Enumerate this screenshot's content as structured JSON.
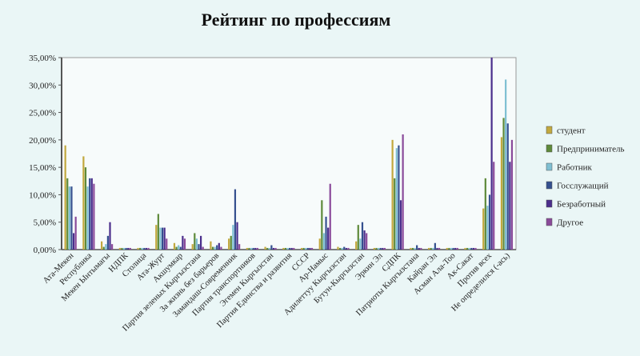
{
  "chart_data": {
    "type": "bar",
    "title": "Рейтинг по профессиям",
    "ylim": [
      0,
      35
    ],
    "yticks": [
      "0,00%",
      "5,00%",
      "10,00%",
      "15,00%",
      "20,00%",
      "25,00%",
      "30,00%",
      "35,00%"
    ],
    "grid": false,
    "legend_position": "right",
    "categories": [
      "Ата-Мекен",
      "Республика",
      "Мекен Ынтымагы",
      "НДПК",
      "Столица",
      "Ата-Журт",
      "Акшумкар",
      "Партия зеленых Кыргызстана",
      "За жизнь без барьеров",
      "Замандаш-Современник",
      "Партия транспортников",
      "Эгемен Кыргызстан",
      "Партия Единства и развития",
      "СССР",
      "Ар-Намыс",
      "Адилеттуу Кыргызстан",
      "Бутун-Кыргызстан",
      "Эркин Эл",
      "СДПК",
      "Патриоты Кыргызстана",
      "Кайран Эл",
      "Асман Ала-Тоо",
      "Ак-Сакат",
      "Против всех",
      "Не определился (-ась)"
    ],
    "series": [
      {
        "name": "студент",
        "color": "#c2a83e",
        "values": [
          19.0,
          17.0,
          1.5,
          0.3,
          0.3,
          4.5,
          1.2,
          1.0,
          1.5,
          2.0,
          0.3,
          0.5,
          0.3,
          0.3,
          2.0,
          0.5,
          1.5,
          0.3,
          20.0,
          0.3,
          0.3,
          0.3,
          0.3,
          7.5,
          20.5
        ]
      },
      {
        "name": "Предприниматель",
        "color": "#5e8a3a",
        "values": [
          13.0,
          15.0,
          0.5,
          0.3,
          0.3,
          6.5,
          0.5,
          3.0,
          0.5,
          2.5,
          0.3,
          0.3,
          0.3,
          0.3,
          9.0,
          0.3,
          4.5,
          0.3,
          13.0,
          0.3,
          0.3,
          0.3,
          0.3,
          13.0,
          24.0
        ]
      },
      {
        "name": "Работник",
        "color": "#7ebfd2",
        "values": [
          11.5,
          11.5,
          1.0,
          0.3,
          0.3,
          4.0,
          0.8,
          2.0,
          0.5,
          4.5,
          0.3,
          0.3,
          0.3,
          0.3,
          3.0,
          0.3,
          2.0,
          0.3,
          18.5,
          0.3,
          0.3,
          0.3,
          0.3,
          8.0,
          31.0
        ]
      },
      {
        "name": "Госслужащий",
        "color": "#35508f",
        "values": [
          11.5,
          13.0,
          2.5,
          0.3,
          0.3,
          4.0,
          0.5,
          1.0,
          0.8,
          11.0,
          0.3,
          0.8,
          0.3,
          0.3,
          6.0,
          0.5,
          5.0,
          0.3,
          19.0,
          0.8,
          1.2,
          0.3,
          0.3,
          10.0,
          23.0
        ]
      },
      {
        "name": "Безработный",
        "color": "#4b2e8c",
        "values": [
          3.0,
          13.0,
          5.0,
          0.3,
          0.3,
          4.0,
          2.5,
          2.5,
          1.2,
          5.0,
          0.3,
          0.3,
          0.3,
          0.3,
          4.0,
          0.3,
          3.5,
          0.3,
          9.0,
          0.3,
          0.3,
          0.3,
          0.3,
          35.0,
          16.0
        ]
      },
      {
        "name": "Другое",
        "color": "#8a4a9a",
        "values": [
          6.0,
          12.0,
          1.0,
          0.3,
          0.3,
          2.0,
          2.0,
          0.5,
          0.5,
          1.0,
          0.3,
          0.3,
          0.3,
          0.3,
          12.0,
          0.3,
          3.0,
          0.3,
          21.0,
          0.3,
          0.3,
          0.3,
          0.3,
          16.0,
          20.0
        ]
      }
    ]
  }
}
